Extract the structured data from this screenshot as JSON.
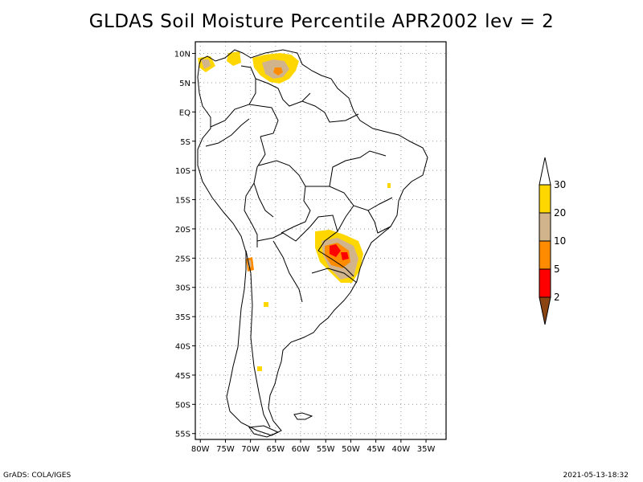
{
  "title": "GLDAS Soil Moisture Percentile APR2002 lev = 2",
  "map": {
    "lat_ticks": [
      "10N",
      "5N",
      "EQ",
      "5S",
      "10S",
      "15S",
      "20S",
      "25S",
      "30S",
      "35S",
      "40S",
      "45S",
      "50S",
      "55S"
    ],
    "lon_ticks": [
      "80W",
      "75W",
      "70W",
      "65W",
      "60W",
      "55W",
      "50W",
      "45W",
      "40W",
      "35W"
    ],
    "grid": true
  },
  "colorbar": {
    "levels": [
      "2",
      "5",
      "10",
      "20",
      "30"
    ],
    "colors": [
      "#8b4513",
      "#ff0000",
      "#ff8c00",
      "#d2b48c",
      "#ffd700",
      "#ffffff"
    ],
    "names": [
      "below-2",
      "2-5",
      "5-10",
      "10-20",
      "20-30",
      "above-30"
    ]
  },
  "footer": {
    "left": "GrADS: COLA/IGES",
    "right": "2021-05-13-18:32"
  }
}
